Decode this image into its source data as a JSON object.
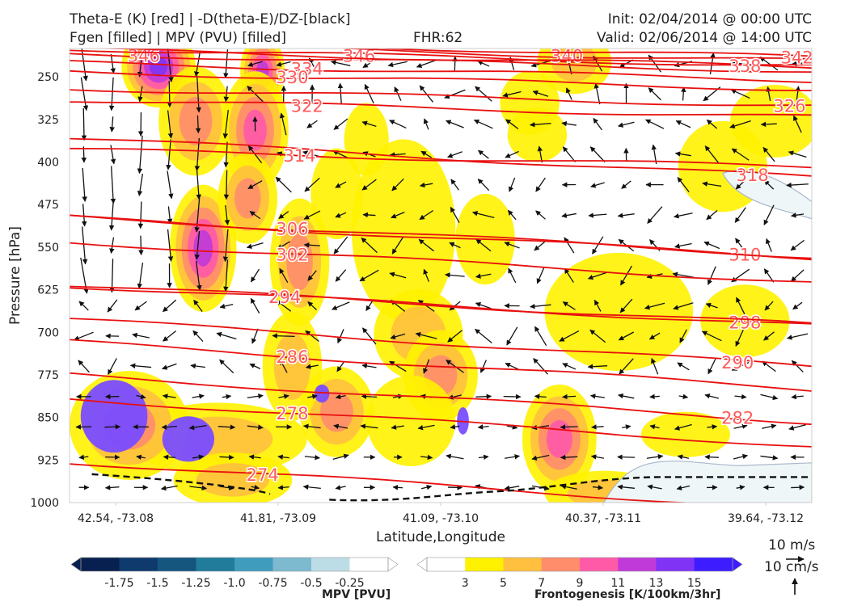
{
  "header": {
    "title_left_1": "Theta-E (K) [red] | -D(theta-E)/DZ-[black]",
    "title_left_2": "Fgen [filled] | MPV (PVU) [filled]",
    "fhr": "FHR:62",
    "init": "Init: 02/04/2014 @ 00:00 UTC",
    "valid": "Valid: 02/06/2014 @ 14:00 UTC"
  },
  "chart_data": {
    "type": "cross-section",
    "ylabel": "Pressure [hPa]",
    "xlabel": "Latitude,Longitude",
    "y_ticks": [
      250,
      325,
      400,
      475,
      550,
      625,
      700,
      775,
      850,
      925,
      1000
    ],
    "ylim": [
      200,
      1000
    ],
    "y_inverted": true,
    "x_ticks": [
      "42.54, -73.08",
      "41.81, -73.09",
      "41.09, -73.10",
      "40.37, -73.11",
      "39.64, -73.12"
    ],
    "theta_e_contours": [
      {
        "label": "346",
        "lx": 0.1,
        "lp": 212
      },
      {
        "label": "346",
        "lx": 0.39,
        "lp": 212
      },
      {
        "label": "340",
        "lx": 0.67,
        "lp": 212
      },
      {
        "label": "342",
        "lx": 0.98,
        "lp": 215
      },
      {
        "label": "338",
        "lx": 0.91,
        "lp": 230
      },
      {
        "label": "334",
        "lx": 0.32,
        "lp": 235
      },
      {
        "label": "330",
        "lx": 0.3,
        "lp": 250
      },
      {
        "label": "326",
        "lx": 0.97,
        "lp": 300
      },
      {
        "label": "322",
        "lx": 0.32,
        "lp": 300
      },
      {
        "label": "318",
        "lx": 0.92,
        "lp": 422
      },
      {
        "label": "314",
        "lx": 0.31,
        "lp": 388
      },
      {
        "label": "310",
        "lx": 0.91,
        "lp": 562
      },
      {
        "label": "306",
        "lx": 0.3,
        "lp": 517
      },
      {
        "label": "302",
        "lx": 0.3,
        "lp": 562
      },
      {
        "label": "298",
        "lx": 0.91,
        "lp": 682
      },
      {
        "label": "294",
        "lx": 0.29,
        "lp": 637
      },
      {
        "label": "290",
        "lx": 0.9,
        "lp": 752
      },
      {
        "label": "286",
        "lx": 0.3,
        "lp": 742
      },
      {
        "label": "282",
        "lx": 0.9,
        "lp": 850
      },
      {
        "label": "278",
        "lx": 0.3,
        "lp": 842
      },
      {
        "label": "274",
        "lx": 0.26,
        "lp": 950
      }
    ],
    "mpv_colorbar": {
      "label": "MPV [PVU]",
      "ticks": [
        "-1.75",
        "-1.5",
        "-1.25",
        "-1.0",
        "-0.75",
        "-0.5",
        "-0.25"
      ],
      "colors": [
        "#08204f",
        "#0e3a6e",
        "#15567f",
        "#217b9a",
        "#3f9cbc",
        "#7dbad0",
        "#bddde6",
        "#ffffff"
      ]
    },
    "fgen_colorbar": {
      "label": "Frontogenesis [K/100km/3hr]",
      "ticks": [
        "3",
        "5",
        "7",
        "9",
        "11",
        "13",
        "15"
      ],
      "colors": [
        "#ffffff",
        "#fff200",
        "#ffc03f",
        "#ff8c6b",
        "#ff5aa8",
        "#c03ad9",
        "#8033f5",
        "#3d1cff"
      ]
    },
    "wind_key": {
      "horizontal": "10 m/s",
      "vertical": "10 cm/s"
    }
  }
}
